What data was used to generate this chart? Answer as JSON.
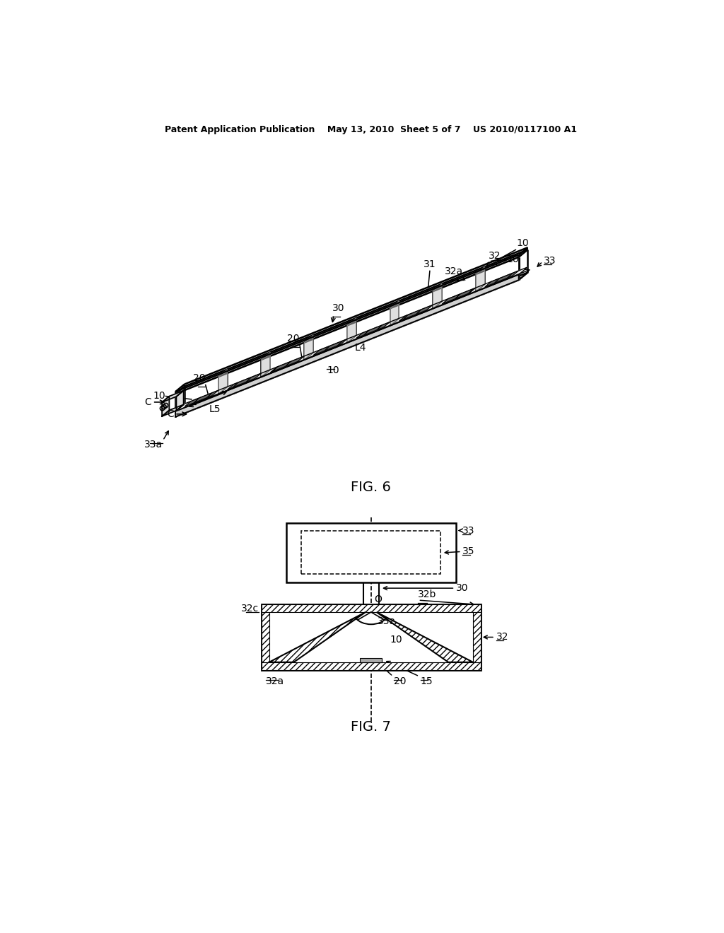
{
  "bg_color": "#ffffff",
  "line_color": "#000000",
  "header": "Patent Application Publication    May 13, 2010  Sheet 5 of 7    US 2010/0117100 A1",
  "fig6_label": "FIG. 6",
  "fig7_label": "FIG. 7"
}
